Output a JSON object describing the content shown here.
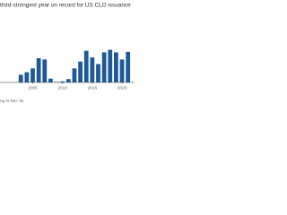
{
  "chart_data": {
    "type": "bar",
    "title": "third-strongest year on record for US CLO issuance",
    "note": "ng to Dec 15",
    "x": [
      2000,
      2001,
      2002,
      2003,
      2004,
      2005,
      2006,
      2007,
      2008,
      2009,
      2010,
      2011,
      2012,
      2013,
      2014,
      2015,
      2016,
      2017,
      2018,
      2019,
      2020,
      2021
    ],
    "values": [
      0,
      0,
      0,
      30,
      40,
      55,
      95,
      90,
      15,
      2,
      4,
      13,
      55,
      82,
      124,
      98,
      72,
      118,
      128,
      118,
      90,
      120
    ],
    "color": "#1f5a96",
    "xlim": [
      1999.5,
      2021.5
    ],
    "xticks": [
      2005,
      2010,
      2015,
      2020
    ],
    "ylim": [
      0,
      130
    ]
  }
}
